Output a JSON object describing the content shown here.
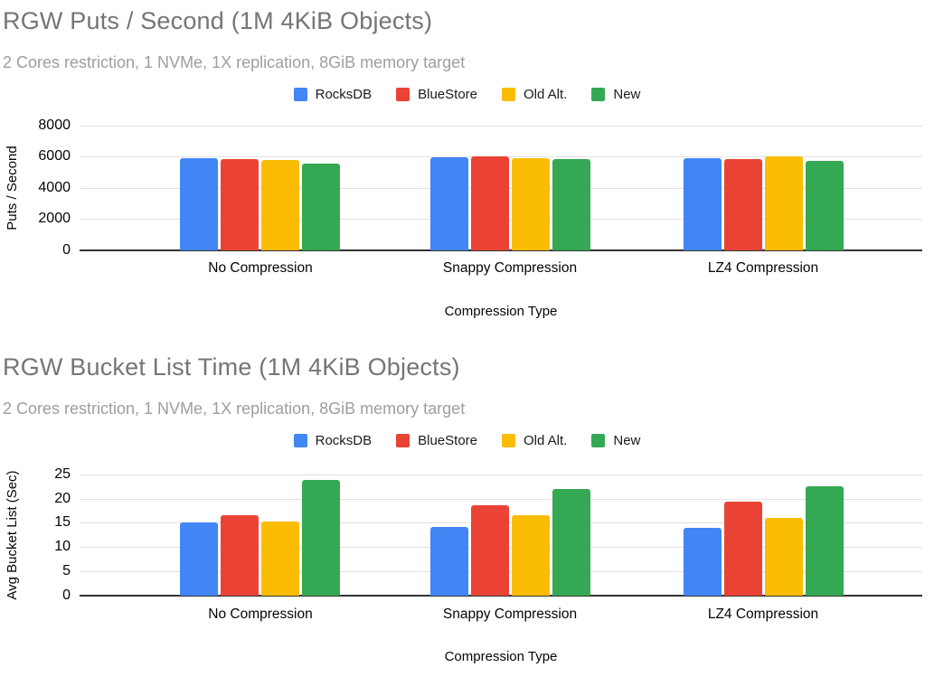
{
  "page": {
    "background": "#ffffff",
    "title_color": "#757575",
    "subtitle_color": "#9e9e9e",
    "gridline_color": "#e0e0e0",
    "baseline_color": "#333333"
  },
  "chart_data": [
    {
      "type": "bar",
      "title": "RGW Puts / Second (1M 4KiB Objects)",
      "subtitle": "2 Cores restriction, 1 NVMe, 1X replication, 8GiB memory target",
      "xlabel": "Compression Type",
      "ylabel": "Puts / Second",
      "categories": [
        "No Compression",
        "Snappy Compression",
        "LZ4 Compression"
      ],
      "series": [
        {
          "name": "RocksDB",
          "color": "#4285F4",
          "values": [
            5930,
            5940,
            5930
          ]
        },
        {
          "name": "BlueStore",
          "color": "#EA4335",
          "values": [
            5860,
            6010,
            5830
          ]
        },
        {
          "name": "Old Alt.",
          "color": "#FBBC04",
          "values": [
            5780,
            5930,
            6020
          ]
        },
        {
          "name": "New",
          "color": "#34A853",
          "values": [
            5570,
            5830,
            5730
          ]
        }
      ],
      "ylim": [
        0,
        8000
      ],
      "yticks": [
        0,
        2000,
        4000,
        6000,
        8000
      ],
      "grid": true,
      "legend_position": "top"
    },
    {
      "type": "bar",
      "title": "RGW Bucket List Time (1M 4KiB Objects)",
      "subtitle": "2 Cores restriction, 1 NVMe, 1X replication, 8GiB memory target",
      "xlabel": "Compression Type",
      "ylabel": "Avg Bucket List (Sec)",
      "categories": [
        "No Compression",
        "Snappy Compression",
        "LZ4 Compression"
      ],
      "series": [
        {
          "name": "RocksDB",
          "color": "#4285F4",
          "values": [
            15.0,
            14.2,
            14.0
          ]
        },
        {
          "name": "BlueStore",
          "color": "#EA4335",
          "values": [
            16.6,
            18.7,
            19.3
          ]
        },
        {
          "name": "Old Alt.",
          "color": "#FBBC04",
          "values": [
            15.3,
            16.5,
            16.1
          ]
        },
        {
          "name": "New",
          "color": "#34A853",
          "values": [
            23.9,
            22.0,
            22.5
          ]
        }
      ],
      "ylim": [
        0,
        25
      ],
      "yticks": [
        0,
        5,
        10,
        15,
        20,
        25
      ],
      "grid": true,
      "legend_position": "top"
    }
  ]
}
